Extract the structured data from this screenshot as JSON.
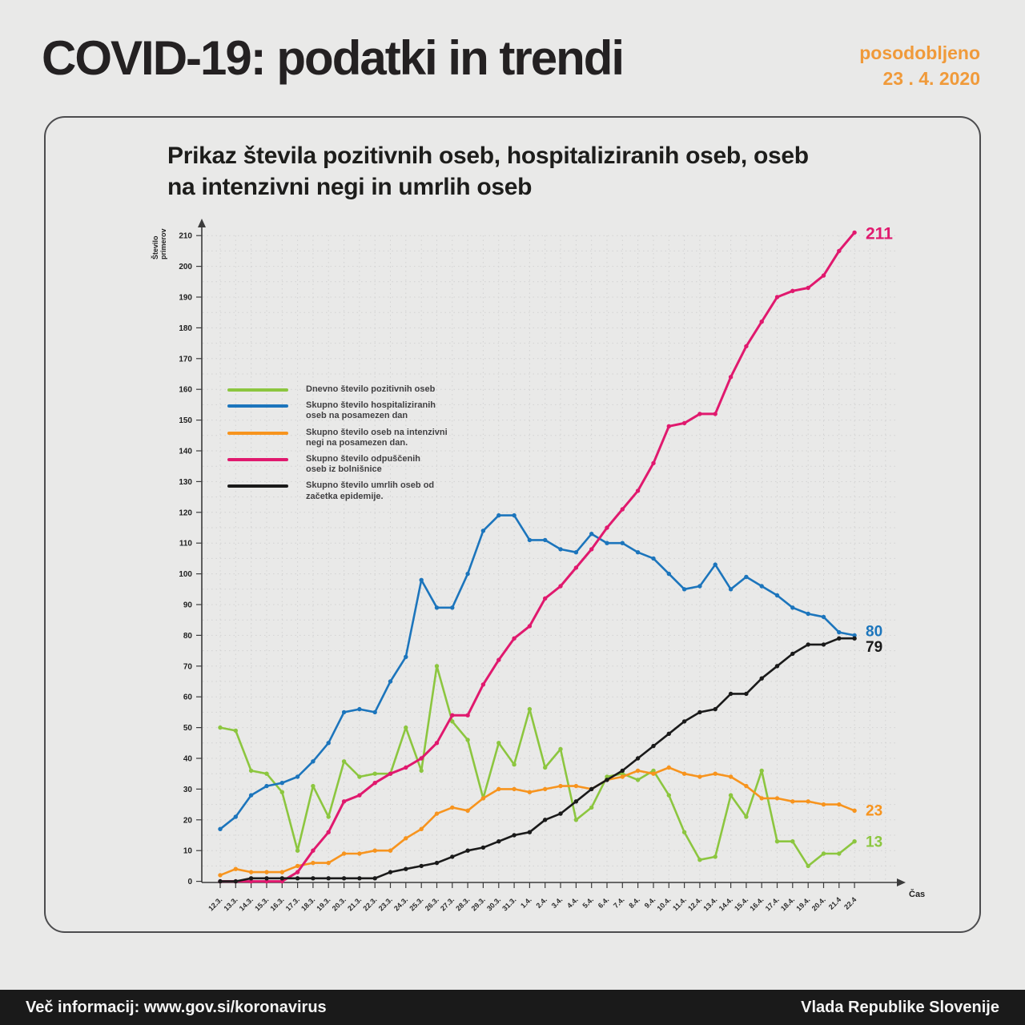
{
  "header": {
    "title": "COVID-19: podatki in trendi",
    "updated_line1": "posodobljeno",
    "updated_line2": "23 . 4. 2020",
    "updated_color": "#f09a3a"
  },
  "card": {
    "title_line1": "Prikaz števila pozitivnih oseb, hospitaliziranih oseb, oseb",
    "title_line2": "na intenzivni negi in umrlih oseb"
  },
  "chart_data": {
    "type": "line",
    "title": "Prikaz števila pozitivnih oseb, hospitaliziranih oseb, oseb na intenzivni negi in umrlih oseb",
    "x_axis_label": "Čas",
    "y_axis_label_lines": [
      "Število",
      "primerov"
    ],
    "ylim": [
      0,
      210
    ],
    "y_tick_step": 10,
    "grid": "dashed",
    "legend_position": "inside-top-left",
    "categories": [
      "12.3.",
      "13.3.",
      "14.3.",
      "15.3.",
      "16.3.",
      "17.3.",
      "18.3.",
      "19.3.",
      "20.3.",
      "21.3.",
      "22.3.",
      "23.3.",
      "24.3.",
      "25.3.",
      "26.3.",
      "27.3.",
      "28.3.",
      "29.3.",
      "30.3.",
      "31.3.",
      "1.4.",
      "2.4.",
      "3.4.",
      "4.4.",
      "5.4.",
      "6.4.",
      "7.4.",
      "8.4.",
      "9.4.",
      "10.4.",
      "11.4.",
      "12.4.",
      "13.4.",
      "14.4.",
      "15.4.",
      "16.4.",
      "17.4.",
      "18.4.",
      "19.4.",
      "20.4.",
      "21.4",
      "22.4"
    ],
    "series": [
      {
        "key": "daily-positive",
        "color": "#8cc63f",
        "legend_lines": [
          "Dnevno število pozitivnih oseb"
        ],
        "values": [
          50,
          49,
          36,
          35,
          29,
          10,
          31,
          21,
          39,
          34,
          35,
          35,
          50,
          36,
          70,
          52,
          46,
          27,
          45,
          38,
          56,
          37,
          43,
          20,
          24,
          34,
          35,
          33,
          36,
          28,
          16,
          7,
          8,
          28,
          21,
          36,
          13,
          13,
          5,
          9,
          9,
          13
        ]
      },
      {
        "key": "hospitalized",
        "color": "#1c75bc",
        "legend_lines": [
          "Skupno število hospitaliziranih",
          "oseb na posamezen dan"
        ],
        "values": [
          17,
          21,
          28,
          31,
          32,
          34,
          39,
          45,
          55,
          56,
          55,
          65,
          73,
          98,
          89,
          89,
          100,
          114,
          119,
          119,
          111,
          111,
          108,
          107,
          113,
          110,
          110,
          107,
          105,
          100,
          95,
          96,
          103,
          95,
          99,
          96,
          93,
          89,
          87,
          86,
          81,
          80
        ]
      },
      {
        "key": "intensive-care",
        "color": "#f7941e",
        "legend_lines": [
          "Skupno število oseb na intenzivni",
          "negi na posamezen dan."
        ],
        "values": [
          2,
          4,
          3,
          3,
          3,
          5,
          6,
          6,
          9,
          9,
          10,
          10,
          14,
          17,
          22,
          24,
          23,
          27,
          30,
          30,
          29,
          30,
          31,
          31,
          30,
          33,
          34,
          36,
          35,
          37,
          35,
          34,
          35,
          34,
          31,
          27,
          27,
          26,
          26,
          25,
          25,
          23
        ]
      },
      {
        "key": "discharged",
        "color": "#e0196e",
        "legend_lines": [
          "Skupno število odpuščenih",
          "oseb iz bolnišnice"
        ],
        "values": [
          0,
          0,
          0,
          0,
          0,
          3,
          10,
          16,
          26,
          28,
          32,
          35,
          37,
          40,
          45,
          54,
          54,
          64,
          72,
          79,
          83,
          92,
          96,
          102,
          108,
          115,
          121,
          127,
          136,
          148,
          149,
          152,
          152,
          164,
          174,
          182,
          190,
          192,
          193,
          197,
          205,
          211
        ]
      },
      {
        "key": "deaths",
        "color": "#1a1a1a",
        "legend_lines": [
          "Skupno število umrlih oseb od",
          "začetka epidemije."
        ],
        "values": [
          0,
          0,
          1,
          1,
          1,
          1,
          1,
          1,
          1,
          1,
          1,
          3,
          4,
          5,
          6,
          8,
          10,
          11,
          13,
          15,
          16,
          20,
          22,
          26,
          30,
          33,
          36,
          40,
          44,
          48,
          52,
          55,
          56,
          61,
          61,
          66,
          70,
          74,
          77,
          77,
          79,
          79
        ]
      }
    ],
    "end_labels": [
      {
        "text": "211",
        "series": "discharged",
        "dy": 8,
        "size": 21
      },
      {
        "text": "80",
        "series": "hospitalized",
        "dy": 1,
        "size": 19
      },
      {
        "text": "79",
        "series": "deaths",
        "dy": 17,
        "size": 19
      },
      {
        "text": "23",
        "series": "intensive-care",
        "dy": 6,
        "size": 19
      },
      {
        "text": "13",
        "series": "daily-positive",
        "dy": 7,
        "size": 19
      }
    ]
  },
  "footer": {
    "left": "Več informacij: www.gov.si/koronavirus",
    "right": "Vlada Republike Slovenije"
  }
}
